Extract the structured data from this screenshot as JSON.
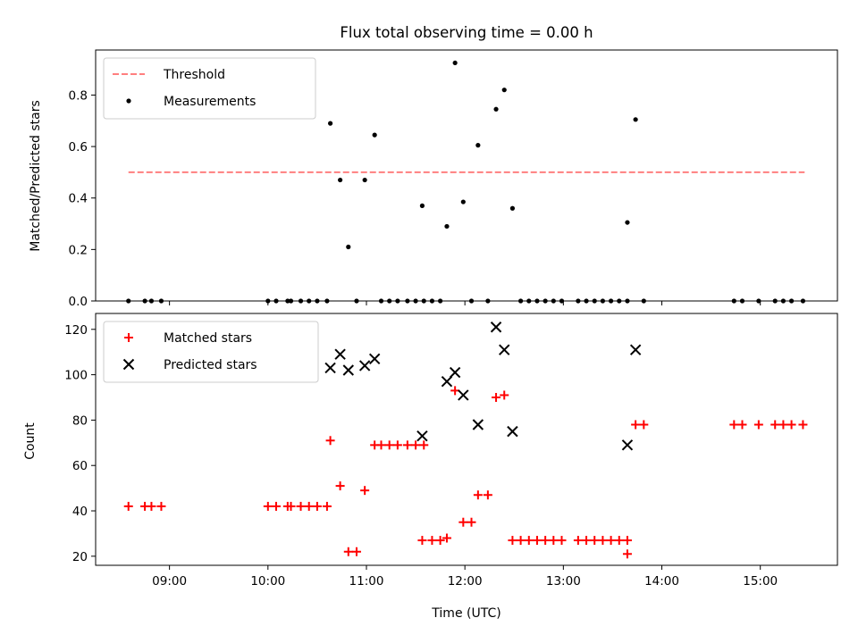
{
  "chart_data": [
    {
      "type": "scatter",
      "title": "Flux total observing time = 0.00 h",
      "ylabel": "Matched/Predicted stars",
      "xlabel": "",
      "xlim": [
        "08:15",
        "15:47"
      ],
      "ylim": [
        0,
        0.975
      ],
      "yticks": [
        "0.0",
        "0.2",
        "0.4",
        "0.6",
        "0.8"
      ],
      "xticks": [
        "09:00",
        "10:00",
        "11:00",
        "12:00",
        "13:00",
        "14:00",
        "15:00"
      ],
      "xticklabels_shown": false,
      "legend": {
        "placement": "upper left",
        "entries": [
          "Threshold",
          "Measurements"
        ]
      },
      "colors": {
        "threshold": "#ff7f7f",
        "measurements": "#000000"
      },
      "series": [
        {
          "name": "Threshold",
          "kind": "dashed-line",
          "points": [
            [
              "08:35",
              0.5
            ],
            [
              "15:27",
              0.5
            ]
          ]
        },
        {
          "name": "Measurements",
          "kind": "dot",
          "points": [
            [
              "08:35",
              0
            ],
            [
              "08:45",
              0
            ],
            [
              "08:49",
              0
            ],
            [
              "08:55",
              0
            ],
            [
              "10:00",
              0
            ],
            [
              "10:05",
              0
            ],
            [
              "10:12",
              0
            ],
            [
              "10:14",
              0
            ],
            [
              "10:20",
              0
            ],
            [
              "10:25",
              0
            ],
            [
              "10:30",
              0
            ],
            [
              "10:36",
              0
            ],
            [
              "10:38",
              0.69
            ],
            [
              "10:44",
              0.47
            ],
            [
              "10:49",
              0.21
            ],
            [
              "10:54",
              0
            ],
            [
              "10:59",
              0.47
            ],
            [
              "11:05",
              0.645
            ],
            [
              "11:09",
              0
            ],
            [
              "11:14",
              0
            ],
            [
              "11:19",
              0
            ],
            [
              "11:25",
              0
            ],
            [
              "11:30",
              0
            ],
            [
              "11:35",
              0
            ],
            [
              "11:34",
              0.37
            ],
            [
              "11:40",
              0
            ],
            [
              "11:45",
              0
            ],
            [
              "11:49",
              0.29
            ],
            [
              "11:54",
              0.925
            ],
            [
              "11:59",
              0.385
            ],
            [
              "12:04",
              0
            ],
            [
              "12:08",
              0.605
            ],
            [
              "12:14",
              0
            ],
            [
              "12:19",
              0.745
            ],
            [
              "12:24",
              0.82
            ],
            [
              "12:29",
              0.36
            ],
            [
              "12:34",
              0
            ],
            [
              "12:39",
              0
            ],
            [
              "12:44",
              0
            ],
            [
              "12:49",
              0
            ],
            [
              "12:54",
              0
            ],
            [
              "12:59",
              0
            ],
            [
              "13:09",
              0
            ],
            [
              "13:14",
              0
            ],
            [
              "13:19",
              0
            ],
            [
              "13:24",
              0
            ],
            [
              "13:29",
              0
            ],
            [
              "13:34",
              0
            ],
            [
              "13:39",
              0
            ],
            [
              "13:39",
              0.305
            ],
            [
              "13:44",
              0.705
            ],
            [
              "13:49",
              0
            ],
            [
              "14:44",
              0
            ],
            [
              "14:49",
              0
            ],
            [
              "14:59",
              0
            ],
            [
              "15:09",
              0
            ],
            [
              "15:14",
              0
            ],
            [
              "15:19",
              0
            ],
            [
              "15:26",
              0
            ]
          ]
        }
      ]
    },
    {
      "type": "scatter",
      "title": "",
      "ylabel": "Count",
      "xlabel": "Time (UTC)",
      "xlim": [
        "08:15",
        "15:47"
      ],
      "ylim": [
        16,
        127
      ],
      "yticks": [
        "20",
        "40",
        "60",
        "80",
        "100",
        "120"
      ],
      "xticks": [
        "09:00",
        "10:00",
        "11:00",
        "12:00",
        "13:00",
        "14:00",
        "15:00"
      ],
      "legend": {
        "placement": "upper left",
        "entries": [
          "Matched stars",
          "Predicted stars"
        ]
      },
      "colors": {
        "matched": "#ff0000",
        "predicted": "#000000"
      },
      "series": [
        {
          "name": "Matched stars",
          "marker": "+",
          "points": [
            [
              "08:35",
              42
            ],
            [
              "08:45",
              42
            ],
            [
              "08:49",
              42
            ],
            [
              "08:55",
              42
            ],
            [
              "10:00",
              42
            ],
            [
              "10:05",
              42
            ],
            [
              "10:12",
              42
            ],
            [
              "10:14",
              42
            ],
            [
              "10:20",
              42
            ],
            [
              "10:25",
              42
            ],
            [
              "10:30",
              42
            ],
            [
              "10:36",
              42
            ],
            [
              "10:38",
              71
            ],
            [
              "10:44",
              51
            ],
            [
              "10:49",
              22
            ],
            [
              "10:54",
              22
            ],
            [
              "10:59",
              49
            ],
            [
              "11:05",
              69
            ],
            [
              "11:09",
              69
            ],
            [
              "11:14",
              69
            ],
            [
              "11:19",
              69
            ],
            [
              "11:25",
              69
            ],
            [
              "11:30",
              69
            ],
            [
              "11:35",
              69
            ],
            [
              "11:34",
              27
            ],
            [
              "11:40",
              27
            ],
            [
              "11:45",
              27
            ],
            [
              "11:49",
              28
            ],
            [
              "11:54",
              93
            ],
            [
              "11:59",
              35
            ],
            [
              "12:04",
              35
            ],
            [
              "12:08",
              47
            ],
            [
              "12:14",
              47
            ],
            [
              "12:19",
              90
            ],
            [
              "12:24",
              91
            ],
            [
              "12:29",
              27
            ],
            [
              "12:34",
              27
            ],
            [
              "12:39",
              27
            ],
            [
              "12:44",
              27
            ],
            [
              "12:49",
              27
            ],
            [
              "12:54",
              27
            ],
            [
              "12:59",
              27
            ],
            [
              "13:09",
              27
            ],
            [
              "13:14",
              27
            ],
            [
              "13:19",
              27
            ],
            [
              "13:24",
              27
            ],
            [
              "13:29",
              27
            ],
            [
              "13:34",
              27
            ],
            [
              "13:39",
              27
            ],
            [
              "13:39",
              21
            ],
            [
              "13:44",
              78
            ],
            [
              "13:49",
              78
            ],
            [
              "14:44",
              78
            ],
            [
              "14:49",
              78
            ],
            [
              "14:59",
              78
            ],
            [
              "15:09",
              78
            ],
            [
              "15:14",
              78
            ],
            [
              "15:19",
              78
            ],
            [
              "15:26",
              78
            ]
          ]
        },
        {
          "name": "Predicted stars",
          "marker": "x",
          "points": [
            [
              "10:38",
              103
            ],
            [
              "10:44",
              109
            ],
            [
              "10:49",
              102
            ],
            [
              "10:59",
              104
            ],
            [
              "11:05",
              107
            ],
            [
              "11:34",
              73
            ],
            [
              "11:49",
              97
            ],
            [
              "11:54",
              101
            ],
            [
              "11:59",
              91
            ],
            [
              "12:08",
              78
            ],
            [
              "12:19",
              121
            ],
            [
              "12:24",
              111
            ],
            [
              "12:29",
              75
            ],
            [
              "13:39",
              69
            ],
            [
              "13:44",
              111
            ]
          ]
        }
      ]
    }
  ]
}
